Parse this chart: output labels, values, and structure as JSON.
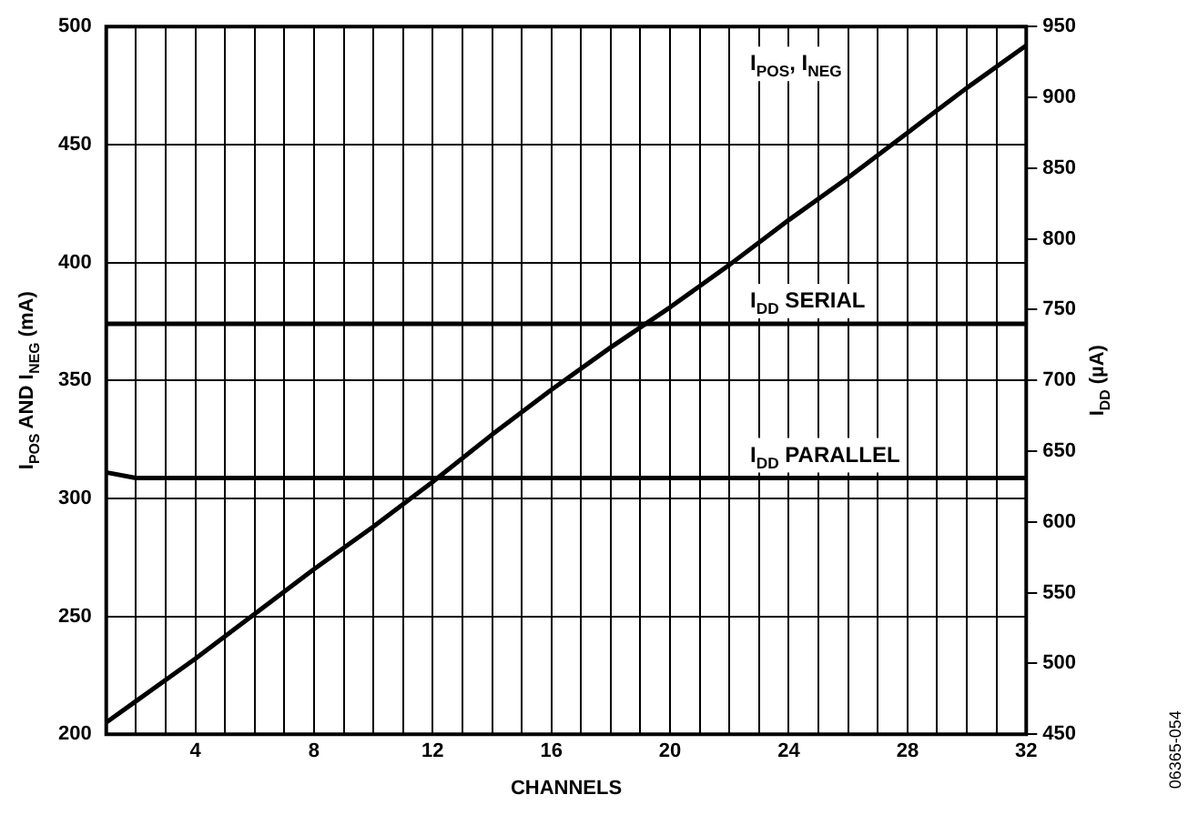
{
  "chart_data": {
    "type": "line",
    "xlabel": "CHANNELS",
    "ylabel": "I$_{POS}$ AND I$_{NEG}$ (mA)",
    "y2label": "I$_{DD}$ (µA)",
    "xlim": [
      1,
      32
    ],
    "xticks": [
      {
        "value": 1,
        "label": null
      },
      {
        "value": 2,
        "label": null
      },
      {
        "value": 3,
        "label": null
      },
      4,
      {
        "value": 5,
        "label": null
      },
      {
        "value": 6,
        "label": null
      },
      {
        "value": 7,
        "label": null
      },
      8,
      {
        "value": 9,
        "label": null
      },
      {
        "value": 10,
        "label": null
      },
      {
        "value": 11,
        "label": null
      },
      12,
      {
        "value": 13,
        "label": null
      },
      {
        "value": 14,
        "label": null
      },
      {
        "value": 15,
        "label": null
      },
      16,
      {
        "value": 17,
        "label": null
      },
      {
        "value": 18,
        "label": null
      },
      {
        "value": 19,
        "label": null
      },
      20,
      {
        "value": 21,
        "label": null
      },
      {
        "value": 22,
        "label": null
      },
      {
        "value": 23,
        "label": null
      },
      24,
      {
        "value": 25,
        "label": null
      },
      {
        "value": 26,
        "label": null
      },
      {
        "value": 27,
        "label": null
      },
      28,
      {
        "value": 29,
        "label": null
      },
      {
        "value": 30,
        "label": null
      },
      {
        "value": 31,
        "label": null
      },
      32
    ],
    "ylim": [
      200,
      500
    ],
    "yticks": [
      200,
      250,
      300,
      350,
      400,
      450,
      500
    ],
    "y2lim": [
      450,
      950
    ],
    "y2ticks": [
      450,
      500,
      550,
      600,
      650,
      700,
      750,
      800,
      850,
      900,
      950
    ],
    "grid": true,
    "marker": "none",
    "line_style": "solid",
    "series": [
      {
        "name": "I$_{POS}$, I$_{NEG}$",
        "color": "#000000",
        "x": [
          1,
          2,
          4,
          6,
          8,
          10,
          12,
          14,
          16,
          18,
          20,
          22,
          24,
          26,
          28,
          30,
          32
        ],
        "values": [
          205,
          214,
          232,
          251,
          270,
          288,
          307,
          327,
          346,
          364,
          381,
          399,
          418,
          436,
          455,
          474,
          492
        ]
      },
      {
        "name": "I$_{DD}$ SERIAL",
        "color": "#000000",
        "axis": "y2",
        "x": [
          1,
          32
        ],
        "values": [
          740,
          740
        ]
      },
      {
        "name": "I$_{DD}$ PARALLEL",
        "color": "#000000",
        "axis": "y2",
        "x": [
          1,
          2,
          32
        ],
        "values": [
          635,
          631,
          631
        ]
      }
    ],
    "annotations": [
      "06365-054"
    ]
  }
}
